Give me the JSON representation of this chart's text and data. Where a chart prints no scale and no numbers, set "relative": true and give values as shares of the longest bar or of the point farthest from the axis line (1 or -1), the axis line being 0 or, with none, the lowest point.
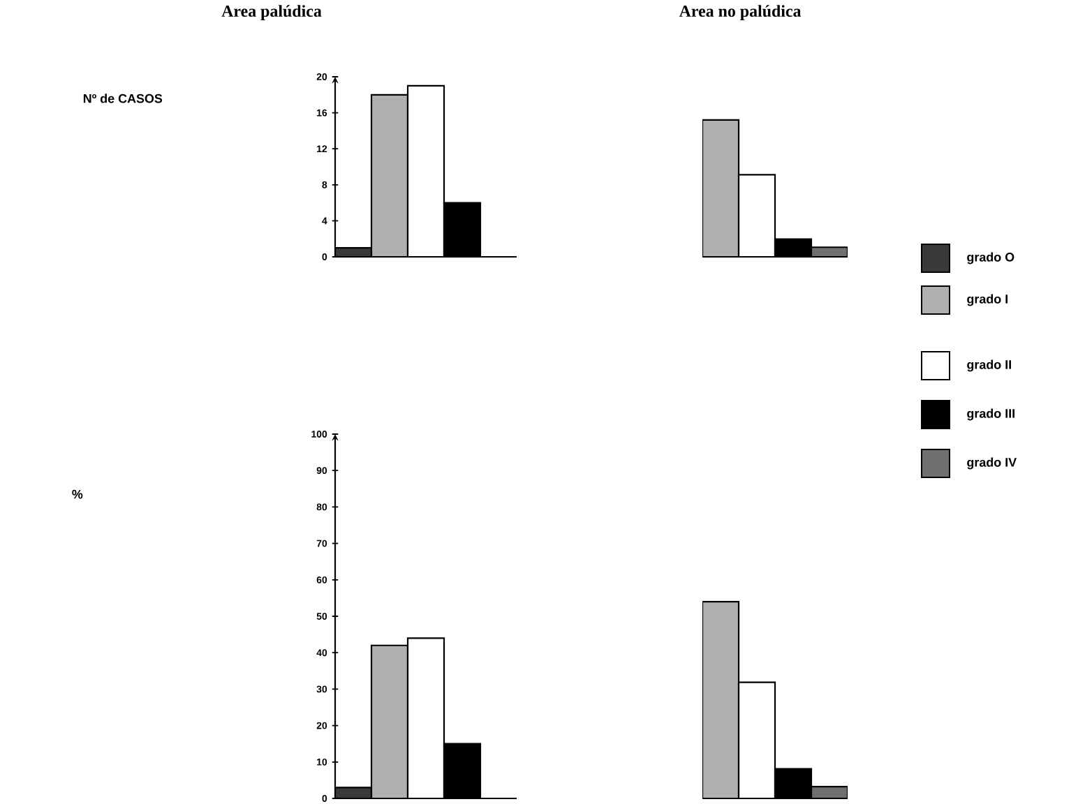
{
  "chart_data": [
    {
      "type": "bar",
      "title": "Area palúdica",
      "ylabel": "Nº de CASOS",
      "categories": [
        null,
        null,
        null,
        null,
        null
      ],
      "ylim": [
        0,
        20
      ],
      "yticks": [
        0,
        4,
        8,
        12,
        16,
        20
      ],
      "tick_labels": "y",
      "grid": false,
      "values": [
        1,
        18,
        19,
        6,
        0
      ],
      "colors": [
        "#3a3a3a",
        "#b0b0b0",
        "#ffffff",
        "#000000",
        "#707070"
      ]
    },
    {
      "type": "bar",
      "title": "Area no palúdica",
      "categories": [
        null,
        null,
        null,
        null
      ],
      "relative": true,
      "tick_labels": false,
      "grid": false,
      "values": [
        1,
        0.6,
        0.13,
        0.07
      ],
      "colors": [
        "#b0b0b0",
        "#ffffff",
        "#000000",
        "#707070"
      ]
    },
    {
      "type": "bar",
      "ylabel": "%",
      "categories": [
        null,
        null,
        null,
        null,
        null
      ],
      "ylim": [
        0,
        100
      ],
      "yticks": [
        0,
        10,
        20,
        30,
        40,
        50,
        60,
        70,
        80,
        90,
        100
      ],
      "tick_labels": "y",
      "grid": false,
      "values": [
        3,
        42,
        44,
        15,
        0
      ],
      "colors": [
        "#3a3a3a",
        "#b0b0b0",
        "#ffffff",
        "#000000",
        "#707070"
      ]
    },
    {
      "type": "bar",
      "categories": [
        null,
        null,
        null,
        null
      ],
      "relative": true,
      "tick_labels": false,
      "grid": false,
      "values": [
        1,
        0.59,
        0.15,
        0.06
      ],
      "colors": [
        "#b0b0b0",
        "#ffffff",
        "#000000",
        "#707070"
      ]
    },
    {
      "type": "other",
      "annotations": [
        "grado O",
        "grado I",
        "grado II",
        "grado III",
        "grado IV"
      ]
    }
  ]
}
